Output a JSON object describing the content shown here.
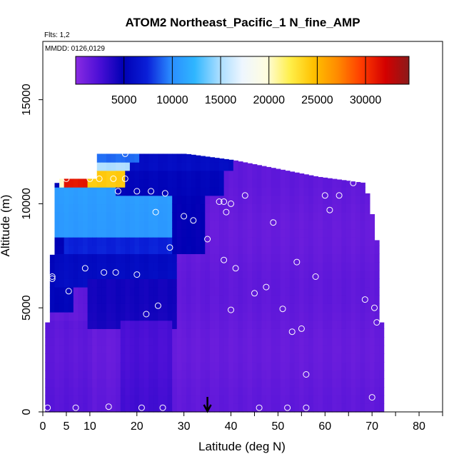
{
  "chart_data": {
    "type": "heatmap",
    "title": "ATOM2 Northeast_Pacific_1 N_fine_AMP",
    "subtitle_flights": "Flts: 1,2",
    "subtitle_dates": "MMDD: 0126,0129",
    "xlabel": "Latitude (deg N)",
    "ylabel": "Altitude (m)",
    "xlim": [
      0,
      85
    ],
    "ylim": [
      0,
      17800
    ],
    "x_ticks": [
      0,
      5,
      10,
      20,
      30,
      40,
      50,
      60,
      70,
      80
    ],
    "x_minor_ticks": [
      45,
      55,
      65,
      75,
      85
    ],
    "y_ticks": [
      0,
      5000,
      10000,
      15000
    ],
    "colorbar": {
      "range": [
        0,
        34500
      ],
      "ticks": [
        5000,
        10000,
        15000,
        20000,
        25000,
        30000
      ],
      "colors": [
        "#8a2be2",
        "#4b0fd6",
        "#0000b4",
        "#0a1fd8",
        "#2a8cff",
        "#2fb6ff",
        "#a6dcff",
        "#eef6ff",
        "#fffde0",
        "#ffef4a",
        "#ffc100",
        "#ff8a00",
        "#ff3c00",
        "#d40000",
        "#8b1a1a"
      ]
    },
    "arrow_marker_lat": 35,
    "background_value": 1500,
    "regions": [
      {
        "lat": [
          1,
          10
        ],
        "alt": [
          0,
          4500
        ],
        "value": 1800
      },
      {
        "lat": [
          2,
          6
        ],
        "alt": [
          5000,
          11200
        ],
        "value": 5200
      },
      {
        "lat": [
          3,
          28
        ],
        "alt": [
          6200,
          7500
        ],
        "value": 5800
      },
      {
        "lat": [
          5,
          28
        ],
        "alt": [
          7500,
          8600
        ],
        "value": 7500
      },
      {
        "lat": [
          3,
          27
        ],
        "alt": [
          8600,
          10600
        ],
        "value": 10800
      },
      {
        "lat": [
          28,
          34
        ],
        "alt": [
          7500,
          10600
        ],
        "value": 5000
      },
      {
        "lat": [
          10,
          28
        ],
        "alt": [
          4200,
          6200
        ],
        "value": 4200
      },
      {
        "lat": [
          16,
          38
        ],
        "alt": [
          10400,
          11800
        ],
        "value": 5200
      },
      {
        "lat": [
          11,
          40
        ],
        "alt": [
          11600,
          12400
        ],
        "value": 5800
      },
      {
        "lat": [
          2,
          16
        ],
        "alt": [
          11000,
          11600
        ],
        "value": 20000
      },
      {
        "lat": [
          5,
          12
        ],
        "alt": [
          11000,
          11600
        ],
        "value": 31000
      },
      {
        "lat": [
          10,
          17
        ],
        "alt": [
          11000,
          11600
        ],
        "value": 24000
      },
      {
        "lat": [
          11,
          18
        ],
        "alt": [
          11600,
          12000
        ],
        "value": 15000
      },
      {
        "lat": [
          11,
          20
        ],
        "alt": [
          12000,
          12400
        ],
        "value": 9000
      },
      {
        "lat": [
          30,
          31
        ],
        "alt": [
          12400,
          13000
        ],
        "value": 4500
      },
      {
        "lat": [
          17,
          27
        ],
        "alt": [
          0,
          4200
        ],
        "value": 2600
      }
    ],
    "sample_points": [
      [
        1,
        200
      ],
      [
        7,
        200
      ],
      [
        14,
        250
      ],
      [
        21,
        200
      ],
      [
        25.5,
        200
      ],
      [
        46,
        200
      ],
      [
        52,
        200
      ],
      [
        56,
        200
      ],
      [
        70,
        700
      ],
      [
        2,
        6400
      ],
      [
        2,
        6500
      ],
      [
        5.5,
        5800
      ],
      [
        9,
        6900
      ],
      [
        13,
        6700
      ],
      [
        15.5,
        6700
      ],
      [
        20,
        6600
      ],
      [
        10.5,
        12100
      ],
      [
        17.5,
        12400
      ],
      [
        16,
        10600
      ],
      [
        20,
        10600
      ],
      [
        23,
        10600
      ],
      [
        26,
        10500
      ],
      [
        5,
        11200
      ],
      [
        10,
        11200
      ],
      [
        12,
        11200
      ],
      [
        15,
        11200
      ],
      [
        17.5,
        11200
      ],
      [
        24,
        9600
      ],
      [
        30,
        9400
      ],
      [
        32,
        9200
      ],
      [
        27,
        7900
      ],
      [
        35,
        8300
      ],
      [
        37.5,
        10100
      ],
      [
        38.5,
        10100
      ],
      [
        40,
        10000
      ],
      [
        39,
        9600
      ],
      [
        43,
        10400
      ],
      [
        49,
        9100
      ],
      [
        60,
        10400
      ],
      [
        61,
        9700
      ],
      [
        63,
        10400
      ],
      [
        66,
        11000
      ],
      [
        38.5,
        7300
      ],
      [
        41,
        6900
      ],
      [
        45,
        5700
      ],
      [
        47.5,
        6000
      ],
      [
        54,
        7200
      ],
      [
        58,
        6500
      ],
      [
        51,
        4950
      ],
      [
        53,
        3850
      ],
      [
        55,
        4000
      ],
      [
        56,
        1800
      ],
      [
        68.5,
        5400
      ],
      [
        70.5,
        5000
      ],
      [
        71,
        4300
      ],
      [
        22,
        4700
      ],
      [
        24.5,
        5100
      ],
      [
        40,
        4900
      ]
    ]
  }
}
